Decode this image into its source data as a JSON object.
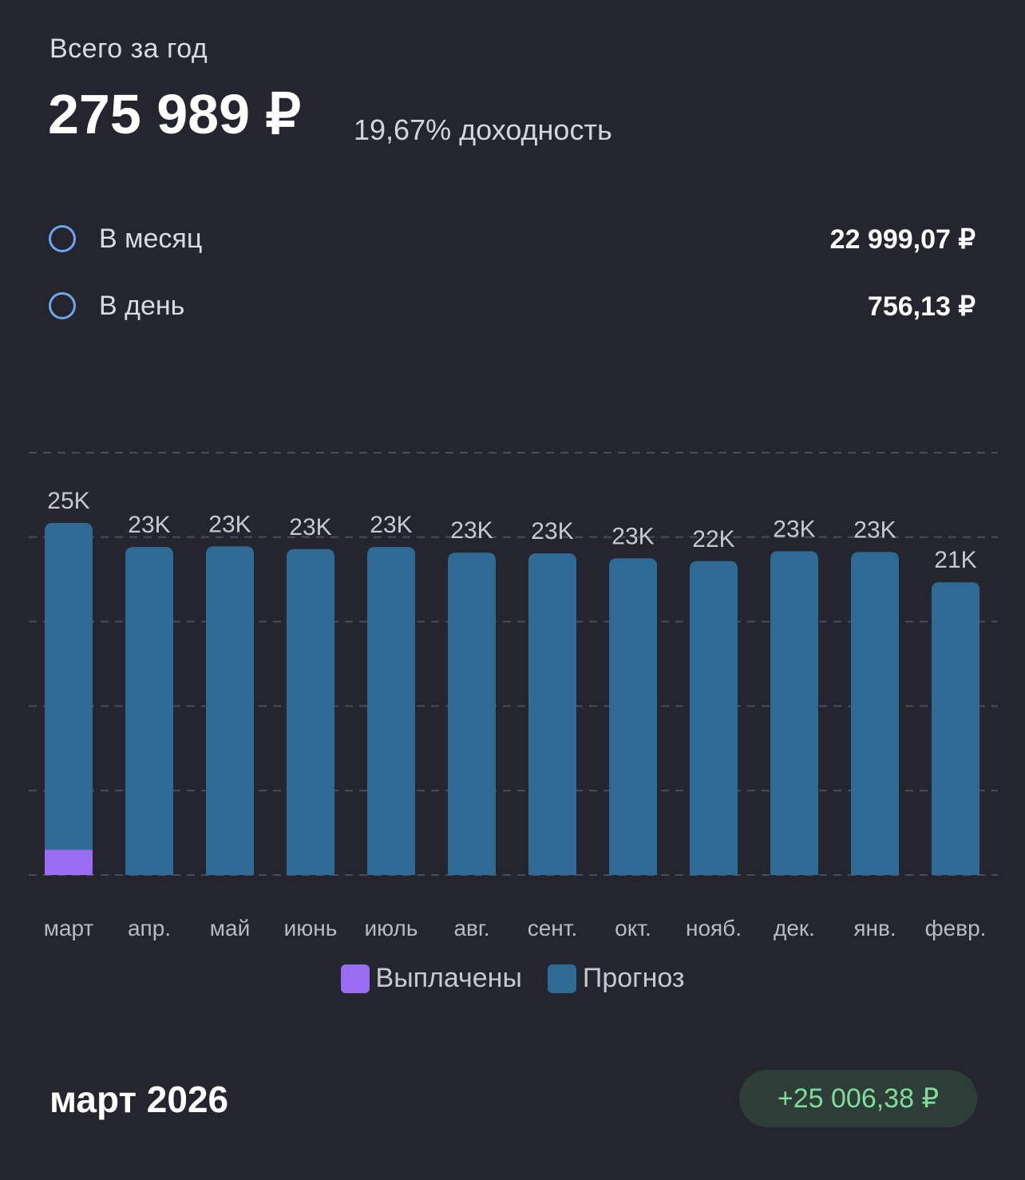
{
  "summary": {
    "year_label": "Всего за год",
    "total": "275 989 ₽",
    "yield": "19,67% доходность"
  },
  "stats": [
    {
      "label": "В месяц",
      "value": "22 999,07 ₽",
      "icon": "circle-outline-icon"
    },
    {
      "label": "В день",
      "value": "756,13 ₽",
      "icon": "circle-outline-icon"
    }
  ],
  "colors": {
    "paid": "#9a6cf1",
    "forecast": "#2f6a94",
    "background": "#24252f",
    "badge_text": "#7fdc9a",
    "circle": "#6ea5ee"
  },
  "chart_data": {
    "type": "bar",
    "stacked": true,
    "categories": [
      "март",
      "апр.",
      "май",
      "июнь",
      "июль",
      "авг.",
      "сент.",
      "окт.",
      "нояб.",
      "дек.",
      "янв.",
      "февр."
    ],
    "series": [
      {
        "name": "Выплачены",
        "values": [
          1800,
          0,
          0,
          0,
          0,
          0,
          0,
          0,
          0,
          0,
          0,
          0
        ]
      },
      {
        "name": "Прогноз",
        "values": [
          23206,
          23300,
          23350,
          23150,
          23300,
          22900,
          22850,
          22500,
          22300,
          23000,
          22950,
          20800
        ]
      }
    ],
    "bar_labels": [
      "25K",
      "23K",
      "23K",
      "23K",
      "23K",
      "23K",
      "23K",
      "23K",
      "22K",
      "23K",
      "23K",
      "21K"
    ],
    "ylim": [
      0,
      30000
    ],
    "grid": true,
    "legend": [
      "Выплачены",
      "Прогноз"
    ],
    "legend_position": "bottom"
  },
  "period": {
    "title": "март 2026",
    "amount": "+25 006,38 ₽"
  }
}
